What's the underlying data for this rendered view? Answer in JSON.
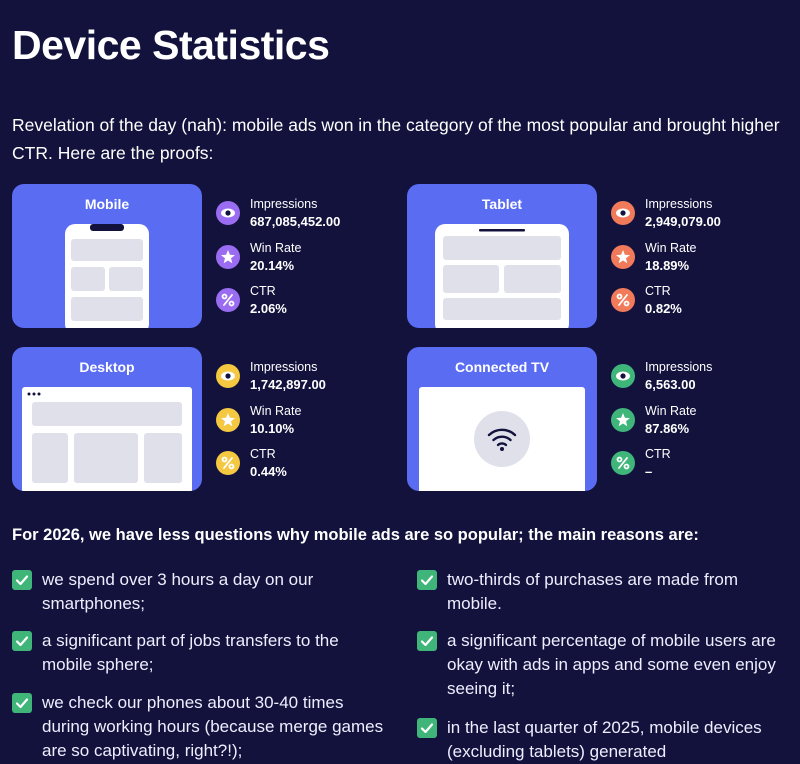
{
  "title": "Device Statistics",
  "intro": "Revelation of the day (nah): mobile ads won in the category of the most popular and brought higher CTR. Here are the proofs:",
  "devices": [
    {
      "name": "Mobile",
      "stats": [
        {
          "label": "Impressions",
          "value": "687,085,452.00"
        },
        {
          "label": "Win Rate",
          "value": "20.14%"
        },
        {
          "label": "CTR",
          "value": "2.06%"
        }
      ]
    },
    {
      "name": "Tablet",
      "stats": [
        {
          "label": "Impressions",
          "value": "2,949,079.00"
        },
        {
          "label": "Win Rate",
          "value": "18.89%"
        },
        {
          "label": "CTR",
          "value": "0.82%"
        }
      ]
    },
    {
      "name": "Desktop",
      "stats": [
        {
          "label": "Impressions",
          "value": "1,742,897.00"
        },
        {
          "label": "Win Rate",
          "value": "10.10%"
        },
        {
          "label": "CTR",
          "value": "0.44%"
        }
      ]
    },
    {
      "name": "Connected TV",
      "stats": [
        {
          "label": "Impressions",
          "value": "6,563.00"
        },
        {
          "label": "Win Rate",
          "value": "87.86%"
        },
        {
          "label": "CTR",
          "value": "–"
        }
      ]
    }
  ],
  "subheading": "For 2026, we have less questions why mobile ads are so popular; the main reasons are:",
  "reasons": {
    "left": [
      "we spend over 3 hours a day on our smartphones;",
      "a significant part of jobs transfers to the mobile sphere;",
      "we check our phones about 30-40 times during working hours (because merge games are so captivating, right?!);"
    ],
    "right": [
      "two-thirds of purchases are made from mobile.",
      "a significant percentage of mobile users are okay with ads in apps and some even enjoy seeing it;",
      "in the last quarter of 2025, mobile devices (excluding tablets) generated"
    ]
  }
}
